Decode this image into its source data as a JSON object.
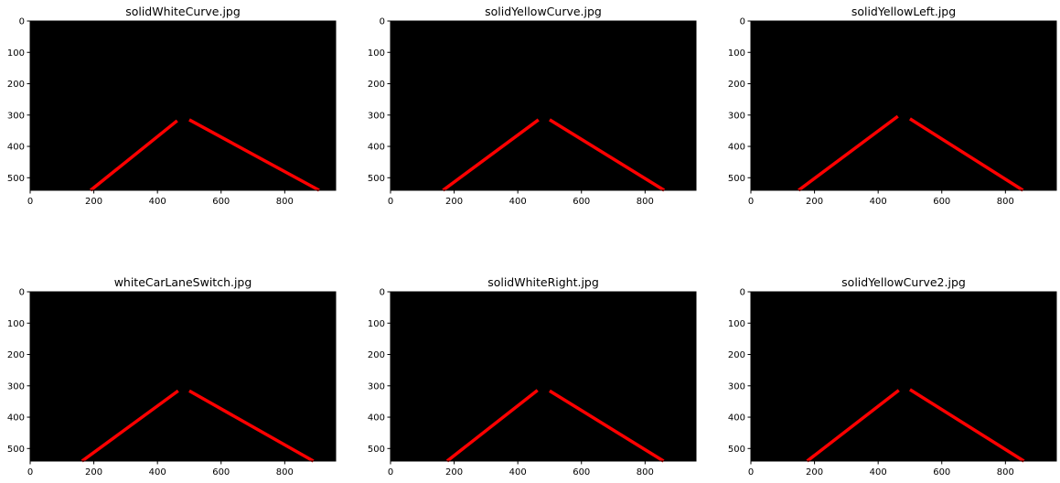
{
  "colors": {
    "background": "#ffffff",
    "image_fill": "#000000",
    "lane_line": "#ff0000"
  },
  "chart_data": [
    {
      "type": "image",
      "title": "solidWhiteCurve.jpg",
      "xlim": [
        0,
        960
      ],
      "ylim": [
        540,
        0
      ],
      "xticks": [
        0,
        200,
        400,
        600,
        800
      ],
      "yticks": [
        0,
        100,
        200,
        300,
        400,
        500
      ],
      "lines": [
        {
          "name": "left-lane",
          "x": [
            190,
            462
          ],
          "y": [
            540,
            318
          ]
        },
        {
          "name": "right-lane",
          "x": [
            500,
            908
          ],
          "y": [
            315,
            540
          ]
        }
      ]
    },
    {
      "type": "image",
      "title": "solidYellowCurve.jpg",
      "xlim": [
        0,
        960
      ],
      "ylim": [
        540,
        0
      ],
      "xticks": [
        0,
        200,
        400,
        600,
        800
      ],
      "yticks": [
        0,
        100,
        200,
        300,
        400,
        500
      ],
      "lines": [
        {
          "name": "left-lane",
          "x": [
            165,
            465
          ],
          "y": [
            540,
            315
          ]
        },
        {
          "name": "right-lane",
          "x": [
            500,
            860
          ],
          "y": [
            315,
            540
          ]
        }
      ]
    },
    {
      "type": "image",
      "title": "solidYellowLeft.jpg",
      "xlim": [
        0,
        960
      ],
      "ylim": [
        540,
        0
      ],
      "xticks": [
        0,
        200,
        400,
        600,
        800
      ],
      "yticks": [
        0,
        100,
        200,
        300,
        400,
        500
      ],
      "lines": [
        {
          "name": "left-lane",
          "x": [
            150,
            462
          ],
          "y": [
            540,
            304
          ]
        },
        {
          "name": "right-lane",
          "x": [
            500,
            855
          ],
          "y": [
            312,
            540
          ]
        }
      ]
    },
    {
      "type": "image",
      "title": "whiteCarLaneSwitch.jpg",
      "xlim": [
        0,
        960
      ],
      "ylim": [
        540,
        0
      ],
      "xticks": [
        0,
        200,
        400,
        600,
        800
      ],
      "yticks": [
        0,
        100,
        200,
        300,
        400,
        500
      ],
      "lines": [
        {
          "name": "left-lane",
          "x": [
            163,
            465
          ],
          "y": [
            540,
            316
          ]
        },
        {
          "name": "right-lane",
          "x": [
            500,
            890
          ],
          "y": [
            316,
            540
          ]
        }
      ]
    },
    {
      "type": "image",
      "title": "solidWhiteRight.jpg",
      "xlim": [
        0,
        960
      ],
      "ylim": [
        540,
        0
      ],
      "xticks": [
        0,
        200,
        400,
        600,
        800
      ],
      "yticks": [
        0,
        100,
        200,
        300,
        400,
        500
      ],
      "lines": [
        {
          "name": "left-lane",
          "x": [
            178,
            462
          ],
          "y": [
            540,
            314
          ]
        },
        {
          "name": "right-lane",
          "x": [
            500,
            858
          ],
          "y": [
            316,
            540
          ]
        }
      ]
    },
    {
      "type": "image",
      "title": "solidYellowCurve2.jpg",
      "xlim": [
        0,
        960
      ],
      "ylim": [
        540,
        0
      ],
      "xticks": [
        0,
        200,
        400,
        600,
        800
      ],
      "yticks": [
        0,
        100,
        200,
        300,
        400,
        500
      ],
      "lines": [
        {
          "name": "left-lane",
          "x": [
            177,
            465
          ],
          "y": [
            540,
            314
          ]
        },
        {
          "name": "right-lane",
          "x": [
            500,
            858
          ],
          "y": [
            312,
            540
          ]
        }
      ]
    }
  ]
}
